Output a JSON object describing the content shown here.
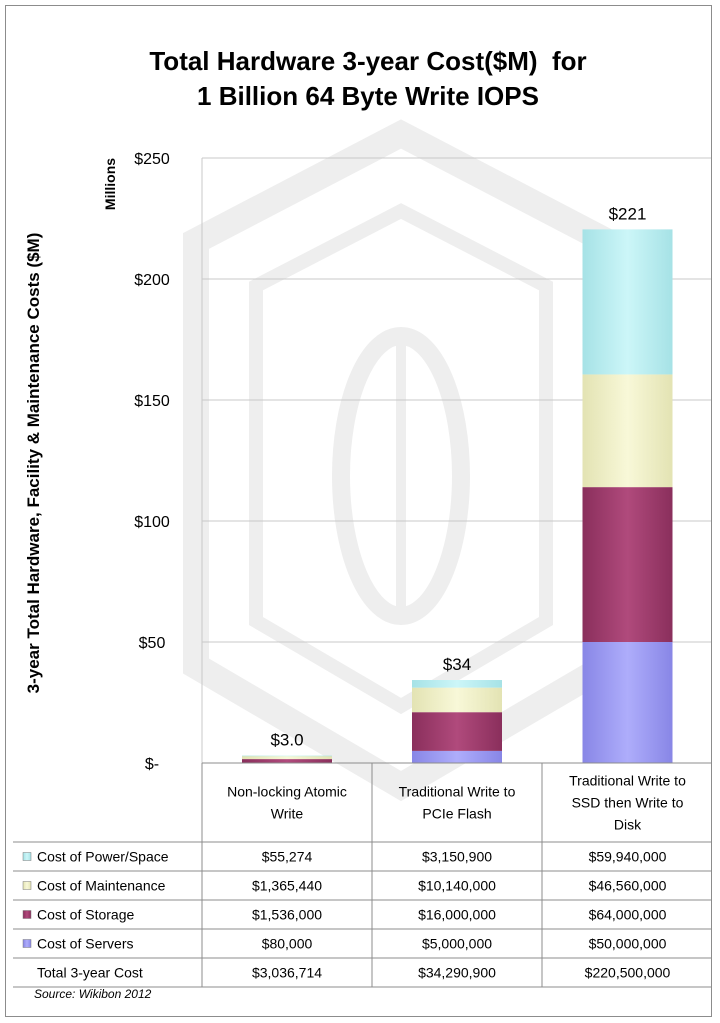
{
  "chart_data": {
    "type": "bar",
    "stacked": true,
    "title_line1": "Total Hardware 3-year Cost($M)  for",
    "title_line2": "1 Billion 64 Byte Write IOPS",
    "ylabel": "3-year Total Hardware, Facility & Maintenance Costs ($M)",
    "yunit": "Millions",
    "ylim": [
      0,
      250
    ],
    "yticks": [
      {
        "value": 0,
        "label": "$-"
      },
      {
        "value": 50,
        "label": "$50"
      },
      {
        "value": 100,
        "label": "$100"
      },
      {
        "value": 150,
        "label": "$150"
      },
      {
        "value": 200,
        "label": "$200"
      },
      {
        "value": 250,
        "label": "$250"
      }
    ],
    "grid": true,
    "categories": [
      [
        "Non-locking Atomic",
        "Write"
      ],
      [
        "Traditional Write to",
        "PCIe Flash"
      ],
      [
        "Traditional Write to",
        "SSD then Write to",
        "Disk"
      ]
    ],
    "totals": [
      3.036714,
      34.2909,
      220.5
    ],
    "total_labels": [
      "$3.0",
      "$34",
      "$221"
    ],
    "series": [
      {
        "name": "Cost of Servers",
        "color": "#9a98ef",
        "values": [
          0.08,
          5.0,
          50.0
        ],
        "labels": [
          "$80,000",
          "$5,000,000",
          "$50,000,000"
        ]
      },
      {
        "name": "Cost of Storage",
        "color": "#9e3d6c",
        "values": [
          1.536,
          16.0,
          64.0
        ],
        "labels": [
          "$1,536,000",
          "$16,000,000",
          "$64,000,000"
        ]
      },
      {
        "name": "Cost of Maintenance",
        "color": "#eeeec4",
        "values": [
          1.36544,
          10.14,
          46.56
        ],
        "labels": [
          "$1,365,440",
          "$10,140,000",
          "$46,560,000"
        ]
      },
      {
        "name": "Cost of Power/Space",
        "color": "#b6ecf0",
        "values": [
          0.055274,
          3.1509,
          59.94
        ],
        "labels": [
          "$55,274",
          "$3,150,900",
          "$59,940,000"
        ]
      }
    ],
    "table_order": [
      3,
      2,
      1,
      0
    ],
    "total_row": {
      "label": "Total 3-year Cost",
      "values": [
        "$3,036,714",
        "$34,290,900",
        "$220,500,000"
      ]
    },
    "source": "Source: Wikibon 2012"
  }
}
